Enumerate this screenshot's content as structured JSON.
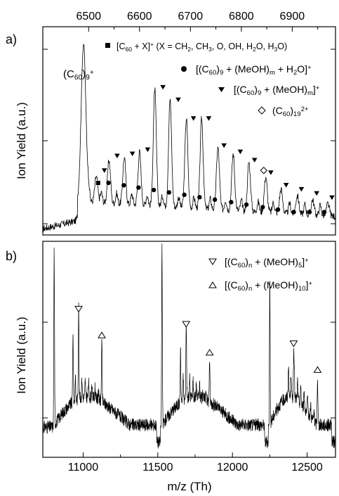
{
  "chart_data": [
    {
      "panel_label": "a)",
      "type": "line",
      "xlabel": "",
      "ylabel": "Ion Yield (a.u.)",
      "x_axis_position": "top",
      "xlim": [
        6410,
        6985
      ],
      "xticks": [
        6500,
        6600,
        6700,
        6800,
        6900
      ],
      "ylim": [
        0,
        1.0
      ],
      "y_scale": "log",
      "peak_label": "(C60)9+",
      "series": [
        {
          "peaks_x": [
            6490,
            6515,
            6540,
            6570,
            6600,
            6630,
            6660,
            6692,
            6722,
            6754,
            6784,
            6815,
            6848,
            6878,
            6910,
            6940,
            6970
          ],
          "peaks_y": [
            0.92,
            0.28,
            0.36,
            0.37,
            0.4,
            0.7,
            0.65,
            0.56,
            0.56,
            0.42,
            0.39,
            0.35,
            0.28,
            0.22,
            0.19,
            0.17,
            0.15
          ]
        }
      ],
      "legend": [
        {
          "symbol": "■",
          "text": "[C60+X]+  (X = CH2, CH3, O, OH, H2O, H3O)",
          "marker_x": [
            6527
          ]
        },
        {
          "symbol": "●",
          "text": "[(C60)9 + (MeOH)m + H2O]+",
          "marker_x": [
            6539,
            6569,
            6598,
            6628,
            6658,
            6688,
            6718,
            6748,
            6780,
            6810,
            6842,
            6872,
            6903,
            6934,
            6963
          ]
        },
        {
          "symbol": "▼",
          "text": "[(C60)9 + (MeOH)m]+",
          "marker_x": [
            6531,
            6556,
            6586,
            6616,
            6646,
            6676,
            6706,
            6736,
            6766,
            6798,
            6826,
            6858,
            6888,
            6918,
            6948,
            6978
          ]
        },
        {
          "symbol": "◇",
          "text": "(C60)19 2+",
          "marker_x": [
            6833
          ]
        }
      ],
      "legend_position": "top-right"
    },
    {
      "panel_label": "b)",
      "type": "line",
      "xlabel": "m/z (Th)",
      "ylabel": "Ion Yield (a.u.)",
      "xlim": [
        10730,
        12690
      ],
      "xticks": [
        11000,
        11500,
        12000,
        12500
      ],
      "ylim": [
        0,
        1.0
      ],
      "y_scale": "log",
      "series": [
        {
          "peaks_x": [
            10806,
            10932,
            10970,
            11125,
            11528,
            11652,
            11690,
            11847,
            12250,
            12375,
            12410,
            12570
          ],
          "peaks_y": [
            0.97,
            0.58,
            0.62,
            0.5,
            0.97,
            0.5,
            0.55,
            0.42,
            0.85,
            0.42,
            0.46,
            0.34
          ]
        }
      ],
      "legend": [
        {
          "symbol": "▽",
          "text": "[(C60)n + (MeOH)5]+",
          "marker_x": [
            10970,
            11690,
            12410
          ]
        },
        {
          "symbol": "△",
          "text": "[(C60)n + (MeOH)10]+",
          "marker_x": [
            11125,
            11847,
            12570
          ]
        }
      ],
      "legend_position": "top-right"
    }
  ]
}
